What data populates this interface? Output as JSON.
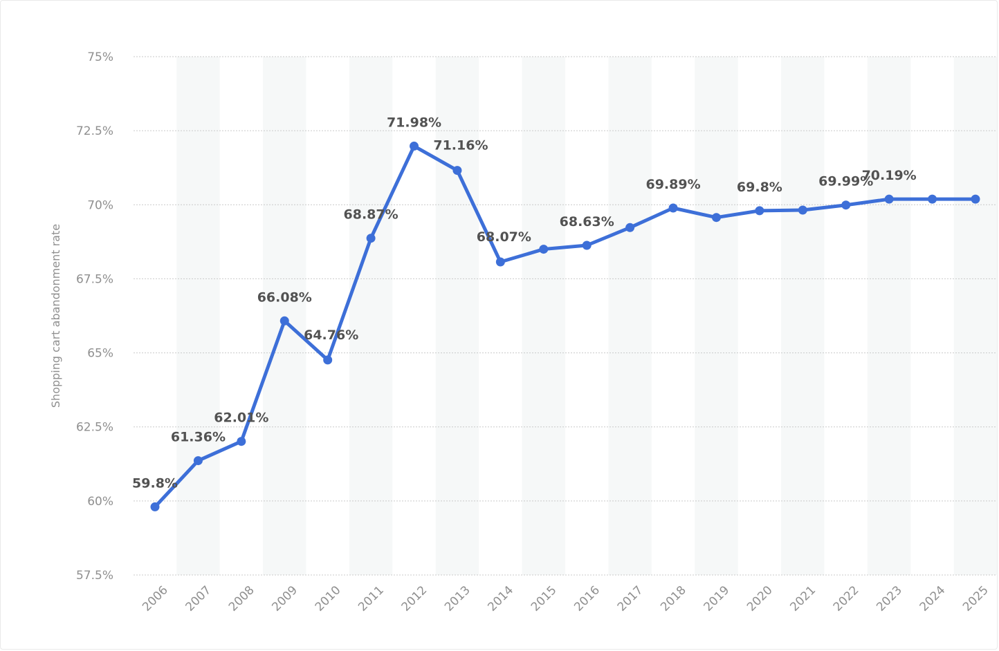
{
  "chart_data": {
    "type": "line",
    "title": "",
    "xlabel": "",
    "ylabel": "Shopping cart abandonment rate",
    "categories": [
      "2006",
      "2007",
      "2008",
      "2009",
      "2010",
      "2011",
      "2012",
      "2013",
      "2014",
      "2015",
      "2016",
      "2017",
      "2018",
      "2019",
      "2020",
      "2021",
      "2022",
      "2023",
      "2024",
      "2025"
    ],
    "series": [
      {
        "values": [
          59.8,
          61.36,
          62.01,
          66.08,
          64.76,
          68.87,
          71.98,
          71.16,
          68.07,
          68.5,
          68.63,
          69.23,
          69.89,
          69.57,
          69.8,
          69.82,
          69.99,
          70.19,
          70.19,
          70.19
        ],
        "labels": [
          "59.8%",
          "61.36%",
          "62.01%",
          "66.08%",
          "64.76%",
          "68.87%",
          "71.98%",
          "71.16%",
          "68.07%",
          "",
          "68.63%",
          "",
          "69.89%",
          "",
          "69.8%",
          "",
          "69.99%",
          "70.19%",
          "",
          ""
        ]
      }
    ],
    "ylim": [
      57.5,
      75
    ],
    "yticks": [
      {
        "value": 57.5,
        "label": "57.5%"
      },
      {
        "value": 60,
        "label": "60%"
      },
      {
        "value": 62.5,
        "label": "62.5%"
      },
      {
        "value": 65,
        "label": "65%"
      },
      {
        "value": 67.5,
        "label": "67.5%"
      },
      {
        "value": 70,
        "label": "70%"
      },
      {
        "value": 72.5,
        "label": "72.5%"
      },
      {
        "value": 75,
        "label": "75%"
      }
    ],
    "grid": true,
    "legend": "none",
    "colors": {
      "line": "#3d6fd8",
      "band": "#f6f8f8",
      "grid": "#c9c9c9",
      "tick_text": "#8f8f8f",
      "label_text": "#525252"
    }
  }
}
